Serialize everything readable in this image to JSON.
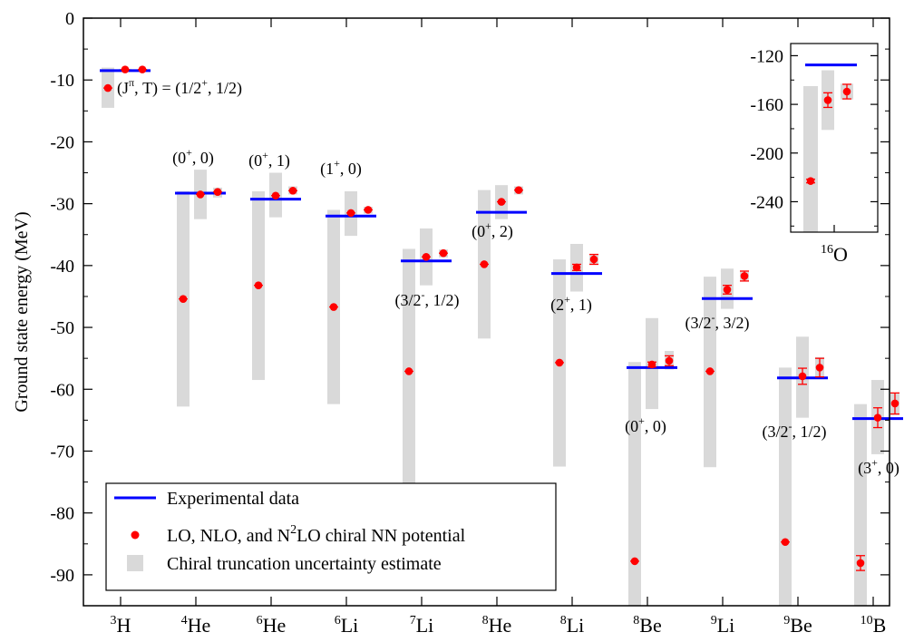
{
  "chart_data": {
    "type": "scatter",
    "ylabel": "Ground state energy (MeV)",
    "ylim": [
      -95,
      0
    ],
    "yticks": [
      0,
      -10,
      -20,
      -30,
      -40,
      -50,
      -60,
      -70,
      -80,
      -90
    ],
    "colors": {
      "experiment": "#0000ff",
      "calc": "#ff0000",
      "band": "#d9d9d9"
    },
    "legend": {
      "placement": "bottom-left",
      "experiment": "Experimental data",
      "calc_pre": "LO, NLO, and N",
      "calc_sup": "2",
      "calc_post": "LO chiral NN potential",
      "band": "Chiral truncation uncertainty estimate"
    },
    "nuclei": [
      {
        "mass": "3",
        "symbol": "H",
        "exp": -8.48,
        "calc": [
          -11.3,
          -8.3,
          -8.3
        ],
        "err": [
          0,
          0,
          0
        ],
        "band": [
          [
            -8.0,
            -14.5
          ],
          [
            -8.2,
            -8.4
          ],
          [
            -8.2,
            -8.4
          ]
        ],
        "label": {
          "j": "1/2",
          "jsign": "+",
          "t": "1/2"
        }
      },
      {
        "mass": "4",
        "symbol": "He",
        "exp": -28.3,
        "calc": [
          -45.4,
          -28.5,
          -28.1
        ],
        "err": [
          0,
          0,
          0
        ],
        "band": [
          [
            -28.0,
            -62.8
          ],
          [
            -24.5,
            -32.5
          ],
          [
            -27.4,
            -29.0
          ]
        ],
        "label": {
          "j": "0",
          "jsign": "+",
          "t": "0"
        }
      },
      {
        "mass": "6",
        "symbol": "He",
        "exp": -29.27,
        "calc": [
          -43.2,
          -28.7,
          -27.9
        ],
        "err": [
          0,
          0,
          0
        ],
        "band": [
          [
            -28.0,
            -58.5
          ],
          [
            -25.0,
            -32.2
          ],
          [
            -27.2,
            -28.5
          ]
        ],
        "label": {
          "j": "0",
          "jsign": "+",
          "t": "1"
        }
      },
      {
        "mass": "6",
        "symbol": "Li",
        "exp": -32.0,
        "calc": [
          -46.7,
          -31.5,
          -31.0
        ],
        "err": [
          0,
          0,
          0
        ],
        "band": [
          [
            -31.0,
            -62.4
          ],
          [
            -28.0,
            -35.2
          ],
          [
            -30.5,
            -31.6
          ]
        ],
        "label": {
          "j": "1",
          "jsign": "+",
          "t": "0"
        }
      },
      {
        "mass": "7",
        "symbol": "Li",
        "exp": -39.25,
        "calc": [
          -57.1,
          -38.6,
          -38.0
        ],
        "err": [
          0,
          0,
          0
        ],
        "band": [
          [
            -37.3,
            -76.0
          ],
          [
            -34.0,
            -43.2
          ],
          [
            -37.4,
            -38.7
          ]
        ],
        "label": {
          "j": "3/2",
          "jsign": "-",
          "t": "1/2"
        }
      },
      {
        "mass": "8",
        "symbol": "He",
        "exp": -31.4,
        "calc": [
          -39.8,
          -29.7,
          -27.8
        ],
        "err": [
          0,
          0,
          0
        ],
        "band": [
          [
            -27.8,
            -51.8
          ],
          [
            -27.0,
            -32.5
          ],
          [
            -27.2,
            -28.5
          ]
        ],
        "label": {
          "j": "0",
          "jsign": "+",
          "t": "2"
        }
      },
      {
        "mass": "8",
        "symbol": "Li",
        "exp": -41.28,
        "calc": [
          -55.7,
          -40.3,
          -39.0
        ],
        "err": [
          0,
          0.5,
          0.8
        ],
        "band": [
          [
            -39.0,
            -72.5
          ],
          [
            -36.5,
            -44.2
          ],
          [
            -38.2,
            -39.8
          ]
        ],
        "label": {
          "j": "2",
          "jsign": "+",
          "t": "1"
        }
      },
      {
        "mass": "8",
        "symbol": "Be",
        "exp": -56.5,
        "calc": [
          -87.8,
          -56.0,
          -55.4
        ],
        "err": [
          0,
          0.4,
          0.8
        ],
        "band": [
          [
            -55.6,
            -95.0
          ],
          [
            -48.5,
            -63.2
          ],
          [
            -53.8,
            -56.8
          ]
        ],
        "label": {
          "j": "0",
          "jsign": "+",
          "t": "0"
        }
      },
      {
        "mass": "9",
        "symbol": "Li",
        "exp": -45.34,
        "calc": [
          -57.1,
          -43.9,
          -41.7
        ],
        "err": [
          0,
          0.7,
          0.8
        ],
        "band": [
          [
            -41.8,
            -72.6
          ],
          [
            -40.5,
            -47.0
          ],
          [
            -41.0,
            -42.6
          ]
        ],
        "label": {
          "j": "3/2",
          "jsign": "-",
          "t": "3/2"
        }
      },
      {
        "mass": "9",
        "symbol": "Be",
        "exp": -58.17,
        "calc": [
          -84.7,
          -57.9,
          -56.5
        ],
        "err": [
          0,
          1.3,
          1.5
        ],
        "band": [
          [
            -56.5,
            -95.0
          ],
          [
            -51.5,
            -64.6
          ],
          [
            -54.8,
            -58.3
          ]
        ],
        "label": {
          "j": "3/2",
          "jsign": "-",
          "t": "1/2"
        }
      },
      {
        "mass": "10",
        "symbol": "B",
        "exp": -64.75,
        "calc": [
          -88.1,
          -64.6,
          -62.3
        ],
        "err": [
          1.2,
          1.6,
          1.7
        ],
        "band": [
          [
            -62.4,
            -95.0
          ],
          [
            -58.5,
            -70.5
          ],
          [
            -60.6,
            -64.2
          ]
        ],
        "label": {
          "j": "3",
          "jsign": "+",
          "t": "0"
        }
      }
    ],
    "inset": {
      "mass": "16",
      "symbol": "O",
      "ylim": [
        -265,
        -110
      ],
      "yticks": [
        -120,
        -160,
        -200,
        -240
      ],
      "exp": -127.6,
      "calc": [
        -223.0,
        -156.5,
        -149.5
      ],
      "err": [
        1.5,
        6.0,
        6.0
      ],
      "band": [
        [
          -145.0,
          -265.0
        ],
        [
          -132.0,
          -181.0
        ],
        [
          -143.0,
          -156.0
        ]
      ]
    }
  }
}
